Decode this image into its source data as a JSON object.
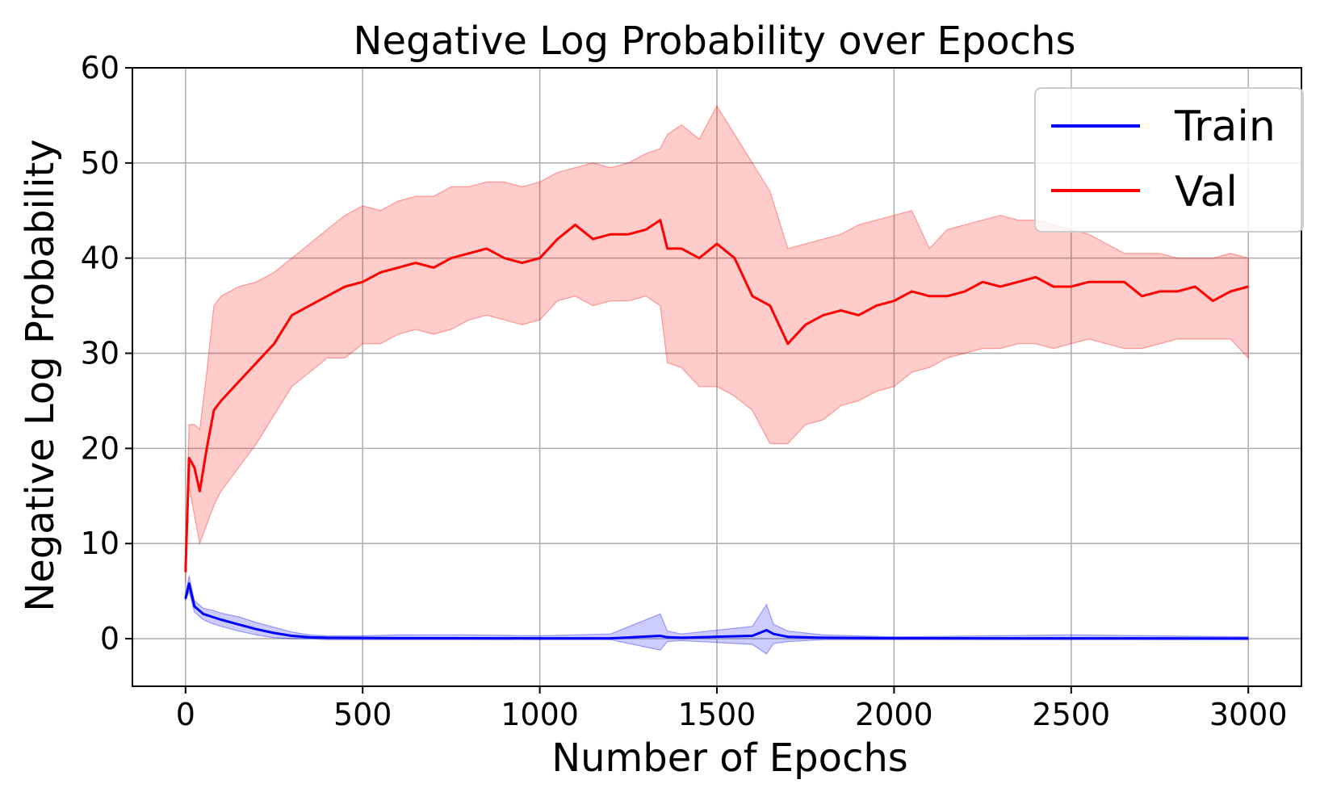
{
  "chart_data": {
    "type": "line",
    "title": "Negative Log Probability over Epochs",
    "xlabel": "Number of Epochs",
    "ylabel": "Negative Log Probability",
    "xlim": [
      -150,
      3150
    ],
    "ylim": [
      -5,
      60
    ],
    "xticks": [
      0,
      500,
      1000,
      1500,
      2000,
      2500,
      3000
    ],
    "yticks": [
      0,
      10,
      20,
      30,
      40,
      50,
      60
    ],
    "grid": true,
    "legend_position": "top-right",
    "series": [
      {
        "name": "Train",
        "color": "#0000ff",
        "band_color": "#0000ff",
        "x": [
          0,
          10,
          25,
          50,
          75,
          100,
          150,
          200,
          250,
          300,
          350,
          400,
          500,
          600,
          800,
          1000,
          1200,
          1340,
          1360,
          1400,
          1500,
          1600,
          1640,
          1660,
          1700,
          1800,
          2000,
          2500,
          3000
        ],
        "mean": [
          4.2,
          5.8,
          3.4,
          2.6,
          2.3,
          2.0,
          1.5,
          1.0,
          0.6,
          0.3,
          0.15,
          0.1,
          0.08,
          0.06,
          0.05,
          0.04,
          0.04,
          0.3,
          0.15,
          0.1,
          0.2,
          0.3,
          0.9,
          0.5,
          0.2,
          0.1,
          0.05,
          0.04,
          0.03
        ],
        "lower": [
          4.0,
          5.0,
          2.8,
          2.0,
          1.6,
          1.3,
          0.8,
          0.4,
          0.1,
          0.0,
          0.0,
          -0.1,
          -0.1,
          -0.1,
          -0.1,
          -0.1,
          -0.1,
          -1.2,
          -0.3,
          -0.2,
          -0.4,
          -0.6,
          -1.6,
          -0.5,
          -0.3,
          -0.1,
          -0.1,
          -0.1,
          -0.1
        ],
        "upper": [
          4.6,
          6.6,
          4.0,
          3.2,
          3.0,
          2.7,
          2.3,
          1.7,
          1.2,
          0.7,
          0.4,
          0.3,
          0.3,
          0.4,
          0.4,
          0.3,
          0.5,
          2.6,
          0.8,
          0.5,
          0.9,
          1.3,
          3.6,
          1.5,
          0.8,
          0.4,
          0.2,
          0.4,
          0.2
        ]
      },
      {
        "name": "Val",
        "color": "#ff0000",
        "band_color": "#ff0000",
        "x": [
          0,
          10,
          25,
          40,
          60,
          80,
          100,
          150,
          200,
          250,
          300,
          350,
          400,
          450,
          500,
          550,
          600,
          650,
          700,
          750,
          800,
          850,
          900,
          950,
          1000,
          1050,
          1100,
          1150,
          1200,
          1250,
          1300,
          1340,
          1360,
          1400,
          1450,
          1500,
          1550,
          1600,
          1650,
          1700,
          1750,
          1800,
          1850,
          1900,
          1950,
          2000,
          2050,
          2100,
          2150,
          2200,
          2250,
          2300,
          2350,
          2400,
          2450,
          2500,
          2550,
          2600,
          2650,
          2700,
          2750,
          2800,
          2850,
          2900,
          2950,
          3000
        ],
        "mean": [
          7.0,
          19.0,
          18.0,
          15.5,
          20.0,
          24.0,
          25.0,
          27.0,
          29.0,
          31.0,
          34.0,
          35.0,
          36.0,
          37.0,
          37.5,
          38.5,
          39.0,
          39.5,
          39.0,
          40.0,
          40.5,
          41.0,
          40.0,
          39.5,
          40.0,
          42.0,
          43.5,
          42.0,
          42.5,
          42.5,
          43.0,
          44.0,
          41.0,
          41.0,
          40.0,
          41.5,
          40.0,
          36.0,
          35.0,
          31.0,
          33.0,
          34.0,
          34.5,
          34.0,
          35.0,
          35.5,
          36.5,
          36.0,
          36.0,
          36.5,
          37.5,
          37.0,
          37.5,
          38.0,
          37.0,
          37.0,
          37.5,
          37.5,
          37.5,
          36.0,
          36.5,
          36.5,
          37.0,
          35.5,
          36.5,
          37.0
        ],
        "lower": [
          6.0,
          16.0,
          13.0,
          10.0,
          12.0,
          14.0,
          15.5,
          18.0,
          20.5,
          23.5,
          26.5,
          28.0,
          29.5,
          29.5,
          31.0,
          31.0,
          32.0,
          32.5,
          32.0,
          32.5,
          33.5,
          34.0,
          33.5,
          33.0,
          33.5,
          35.5,
          36.0,
          35.0,
          35.5,
          35.5,
          36.0,
          35.0,
          29.0,
          28.5,
          26.5,
          26.5,
          25.5,
          24.0,
          20.5,
          20.5,
          22.5,
          23.0,
          24.5,
          25.0,
          26.0,
          26.5,
          28.0,
          28.5,
          29.5,
          30.0,
          30.5,
          30.5,
          31.0,
          31.0,
          30.5,
          31.0,
          31.5,
          31.0,
          30.5,
          30.5,
          31.0,
          31.5,
          31.5,
          31.5,
          31.5,
          29.5
        ],
        "upper": [
          9.0,
          22.5,
          22.5,
          22.0,
          28.0,
          35.0,
          36.0,
          37.0,
          37.5,
          38.5,
          40.0,
          41.5,
          43.0,
          44.5,
          45.5,
          45.0,
          46.0,
          46.5,
          46.5,
          47.5,
          47.5,
          48.0,
          48.0,
          47.5,
          48.0,
          49.0,
          49.5,
          50.0,
          49.5,
          50.0,
          51.0,
          51.5,
          53.0,
          54.0,
          52.5,
          56.0,
          53.0,
          50.0,
          47.0,
          41.0,
          41.5,
          42.0,
          42.5,
          43.5,
          44.0,
          44.5,
          45.0,
          41.0,
          43.0,
          43.5,
          44.0,
          44.5,
          44.0,
          44.0,
          43.5,
          43.0,
          42.5,
          41.5,
          40.5,
          40.5,
          40.5,
          40.0,
          40.0,
          40.0,
          40.5,
          40.0
        ]
      }
    ]
  }
}
